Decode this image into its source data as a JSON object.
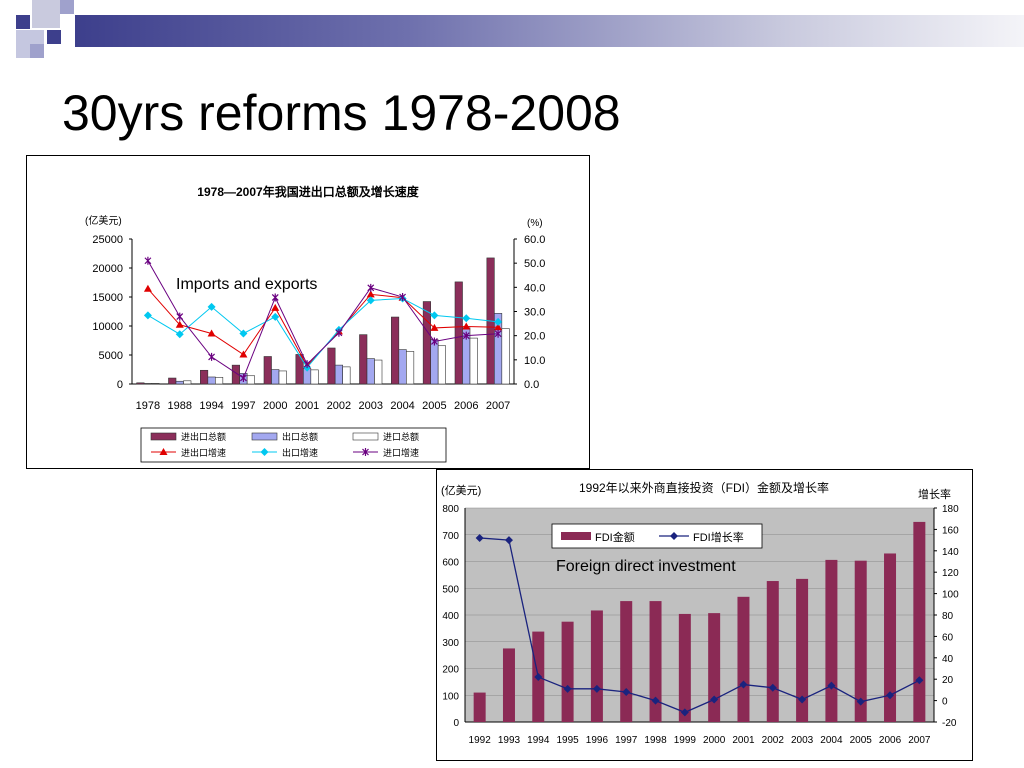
{
  "slide": {
    "title": "30yrs reforms 1978-2008",
    "colors": {
      "accent_dark": "#3d3f8c",
      "accent_light": "#9fa1cc"
    }
  },
  "chart_data": [
    {
      "type": "bar",
      "title": "1978—2007年我国进出口总额及增长速度",
      "overlay_label": "Imports and exports",
      "y_left_unit": "(亿美元)",
      "y_right_unit": "(%)",
      "categories": [
        "1978",
        "1988",
        "1994",
        "1997",
        "2000",
        "2001",
        "2002",
        "2003",
        "2004",
        "2005",
        "2006",
        "2007"
      ],
      "ylim": [
        0,
        25000
      ],
      "ylim_right": [
        0,
        60
      ],
      "y_ticks": [
        "0",
        "5000",
        "10000",
        "15000",
        "20000",
        "25000"
      ],
      "y_right_ticks": [
        "0.0",
        "10.0",
        "20.0",
        "30.0",
        "40.0",
        "50.0",
        "60.0"
      ],
      "series": [
        {
          "name": "进出口总额",
          "kind": "bar",
          "color": "#8b2e5a",
          "values": [
            206,
            1028,
            2366,
            3252,
            4743,
            5097,
            6208,
            8510,
            11546,
            14219,
            17604,
            21737
          ]
        },
        {
          "name": "出口总额",
          "kind": "bar",
          "color": "#a3a8f0",
          "values": [
            98,
            475,
            1210,
            1828,
            2492,
            2661,
            3256,
            4382,
            5933,
            7620,
            9689,
            12178
          ]
        },
        {
          "name": "进口总额",
          "kind": "bar",
          "color": "#ffffff",
          "values": [
            109,
            553,
            1156,
            1424,
            2251,
            2436,
            2952,
            4128,
            5614,
            6600,
            7915,
            9558
          ]
        },
        {
          "name": "进出口增速",
          "kind": "line",
          "color": "#e00000",
          "values": [
            39.4,
            24.5,
            20.9,
            12.2,
            31.5,
            7.5,
            21.8,
            37.1,
            35.7,
            23.2,
            23.8,
            23.5
          ]
        },
        {
          "name": "出口增速",
          "kind": "line",
          "color": "#00c8f0",
          "values": [
            28.4,
            20.6,
            31.9,
            20.9,
            27.8,
            6.8,
            22.4,
            34.6,
            35.4,
            28.4,
            27.2,
            25.7
          ]
        },
        {
          "name": "进口增速",
          "kind": "line",
          "color": "#6a0080",
          "values": [
            51.0,
            27.9,
            11.2,
            2.5,
            35.8,
            8.2,
            21.2,
            39.8,
            36.0,
            17.6,
            20.0,
            20.8
          ]
        }
      ]
    },
    {
      "type": "bar",
      "title": "1992年以来外商直接投资（FDI）金额及增长率",
      "overlay_label": "Foreign direct investment",
      "y_left_unit": "(亿美元)",
      "y_right_unit": "增长率",
      "categories": [
        "1992",
        "1993",
        "1994",
        "1995",
        "1996",
        "1997",
        "1998",
        "1999",
        "2000",
        "2001",
        "2002",
        "2003",
        "2004",
        "2005",
        "2006",
        "2007"
      ],
      "ylim": [
        0,
        800
      ],
      "ylim_right": [
        -20,
        180
      ],
      "y_ticks": [
        "0",
        "100",
        "200",
        "300",
        "400",
        "500",
        "600",
        "700",
        "800"
      ],
      "y_right_ticks": [
        "-20",
        "0",
        "20",
        "40",
        "60",
        "80",
        "100",
        "120",
        "140",
        "160",
        "180"
      ],
      "series": [
        {
          "name": "FDI金额",
          "kind": "bar",
          "color": "#8b2a55",
          "values": [
            110,
            275,
            338,
            375,
            417,
            452,
            452,
            404,
            407,
            468,
            527,
            535,
            606,
            603,
            630,
            748
          ]
        },
        {
          "name": "FDI增长率",
          "kind": "line",
          "color": "#1a237e",
          "values": [
            152,
            150,
            22,
            11,
            11,
            8,
            0,
            -11,
            1,
            15,
            12,
            1,
            14,
            -1,
            5,
            19
          ]
        }
      ]
    }
  ]
}
